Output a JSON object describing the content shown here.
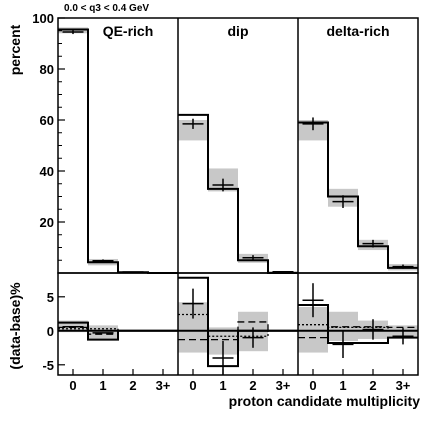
{
  "chart_data": {
    "type": "bar",
    "header": "0.0 < q3 < 0.4 GeV",
    "xlabel": "proton candidate multiplicity",
    "ylabel_top": "percent",
    "ylabel_bottom": "(data-base)%",
    "categories": [
      "0",
      "1",
      "2",
      "3+"
    ],
    "ylim_top": [
      0,
      100
    ],
    "yticks_top": [
      "20",
      "40",
      "60",
      "80",
      "100"
    ],
    "ylim_bottom": [
      -6.5,
      8.5
    ],
    "yticks_bottom": [
      "-5",
      "0",
      "5"
    ],
    "colors": {
      "band": "#c8c8c8",
      "line": "#000000"
    },
    "panels": [
      {
        "name": "QE-rich",
        "top": {
          "data": [
            94.5,
            4.8,
            0.4,
            0.1
          ],
          "data_err": [
            0.8,
            0.5,
            0.1,
            0.05
          ],
          "model": [
            95.5,
            4.2,
            0.3,
            0.0
          ],
          "band_lo": [
            94.0,
            3.0,
            0.0,
            0.0
          ],
          "band_hi": [
            96.3,
            5.5,
            0.6,
            0.3
          ]
        },
        "bottom": {
          "data": [
            0.6,
            -0.3,
            0.0,
            0.0
          ],
          "model": [
            1.2,
            -1.3,
            0.0,
            0.0
          ],
          "dashed": [
            0.5,
            -0.5,
            0.0,
            0.0
          ],
          "dotted": [
            0.3,
            0.3,
            0.0,
            0.0
          ],
          "band_lo": [
            -0.2,
            -1.2,
            0.0,
            0.0
          ],
          "band_hi": [
            1.5,
            0.8,
            0.0,
            0.0
          ]
        }
      },
      {
        "name": "dip",
        "top": {
          "data": [
            58.5,
            34.5,
            6.0,
            0.5
          ],
          "data_err": [
            2.0,
            2.5,
            1.0,
            0.2
          ],
          "model": [
            62.0,
            33.0,
            5.0,
            0.0
          ],
          "band_lo": [
            52.0,
            32.0,
            4.0,
            0.0
          ],
          "band_hi": [
            60.0,
            41.0,
            7.5,
            0.8
          ]
        },
        "bottom": {
          "data": [
            4.0,
            -4.0,
            -1.0,
            0.0
          ],
          "data_err": [
            2.2,
            2.5,
            1.5,
            0.0
          ],
          "model": [
            7.8,
            -5.2,
            0.0,
            0.0
          ],
          "dashed": [
            -1.3,
            -1.3,
            1.3,
            0.0
          ],
          "dotted": [
            2.4,
            -0.8,
            -0.8,
            0.0
          ],
          "band_lo": [
            -3.2,
            -3.5,
            -3.0,
            0.0
          ],
          "band_hi": [
            4.2,
            0.5,
            2.8,
            0.0
          ]
        }
      },
      {
        "name": "delta-rich",
        "top": {
          "data": [
            58.5,
            28.0,
            11.5,
            2.5
          ],
          "data_err": [
            2.5,
            2.5,
            1.5,
            0.8
          ],
          "model": [
            59.0,
            30.0,
            10.5,
            2.0
          ],
          "band_lo": [
            52.0,
            26.0,
            9.0,
            1.0
          ],
          "band_hi": [
            60.0,
            33.0,
            13.0,
            3.5
          ]
        },
        "bottom": {
          "data": [
            4.5,
            -2.0,
            0.2,
            -0.8
          ],
          "data_err": [
            2.5,
            2.0,
            1.5,
            1.2
          ],
          "model": [
            3.8,
            -1.8,
            -1.8,
            -1.0
          ],
          "dashed": [
            -1.0,
            0.6,
            0.6,
            0.5
          ],
          "dotted": [
            0.9,
            0.5,
            0.5,
            0.0
          ],
          "band_lo": [
            -3.2,
            -1.5,
            -1.2,
            -1.0
          ],
          "band_hi": [
            3.5,
            2.8,
            1.5,
            0.8
          ]
        }
      }
    ]
  }
}
